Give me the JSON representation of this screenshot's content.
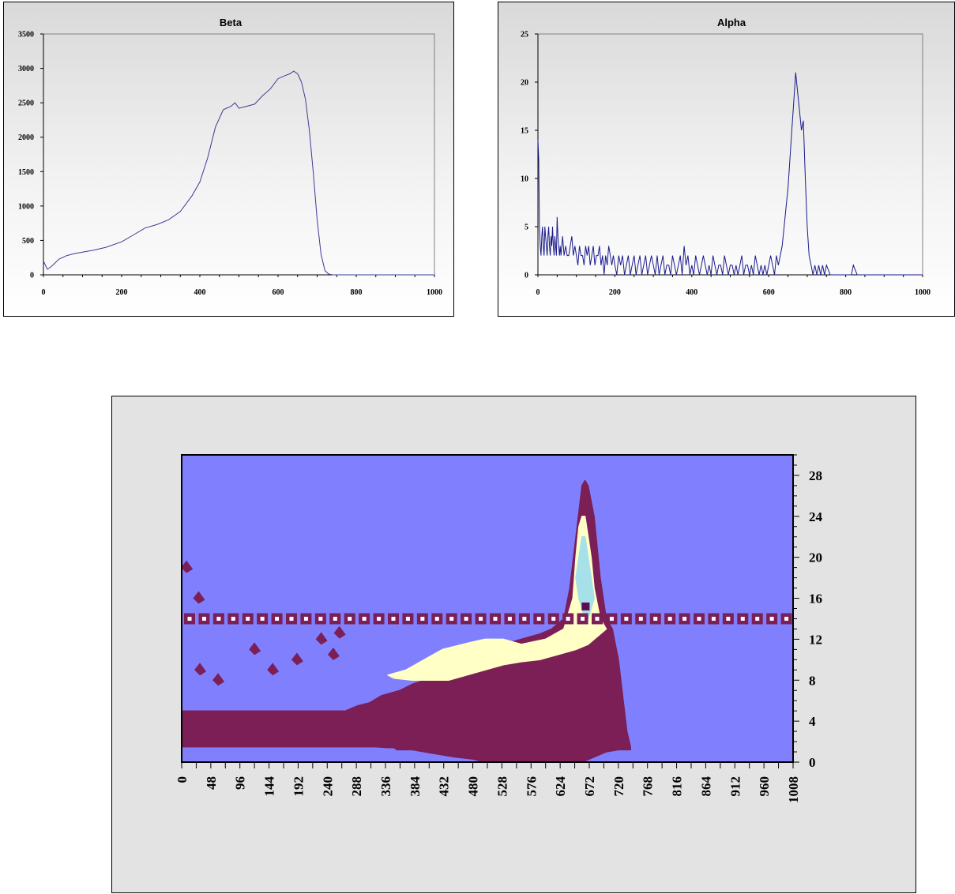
{
  "chart_data": [
    {
      "type": "line",
      "title": "Beta",
      "xlim": [
        0,
        1000
      ],
      "ylim": [
        0,
        3500
      ],
      "x_ticks": [
        "0",
        "200",
        "400",
        "600",
        "800",
        "1000"
      ],
      "y_ticks": [
        "0",
        "500",
        "1000",
        "1500",
        "2000",
        "2500",
        "3000",
        "3500"
      ],
      "grid": false,
      "legend": "none",
      "colors": {
        "line": "#3c3c96"
      },
      "series": [
        {
          "x": [
            0,
            10,
            20,
            40,
            60,
            80,
            100,
            130,
            160,
            200,
            230,
            260,
            290,
            320,
            350,
            380,
            400,
            420,
            440,
            460,
            480,
            490,
            500,
            520,
            540,
            560,
            580,
            600,
            620,
            630,
            640,
            650,
            660,
            670,
            680,
            690,
            700,
            710,
            720,
            730,
            740,
            760,
            800,
            900,
            1000
          ],
          "y": [
            200,
            80,
            120,
            230,
            280,
            310,
            330,
            360,
            400,
            480,
            580,
            680,
            730,
            800,
            920,
            1150,
            1350,
            1700,
            2150,
            2400,
            2450,
            2500,
            2420,
            2450,
            2480,
            2600,
            2700,
            2850,
            2900,
            2920,
            2960,
            2920,
            2800,
            2550,
            2100,
            1500,
            800,
            300,
            60,
            10,
            0,
            0,
            0,
            0,
            0
          ]
        }
      ]
    },
    {
      "type": "line",
      "title": "Alpha",
      "xlim": [
        0,
        1000
      ],
      "ylim": [
        0,
        25
      ],
      "x_ticks": [
        "0",
        "200",
        "400",
        "600",
        "800",
        "1000"
      ],
      "y_ticks": [
        "0",
        "5",
        "10",
        "15",
        "20",
        "25"
      ],
      "grid": false,
      "legend": "none",
      "colors": {
        "line": "#1a1a8c"
      },
      "series": [
        {
          "x": [
            0,
            2,
            4,
            6,
            8,
            10,
            12,
            14,
            16,
            18,
            20,
            22,
            24,
            26,
            28,
            30,
            32,
            34,
            36,
            38,
            40,
            42,
            44,
            46,
            48,
            50,
            52,
            54,
            56,
            58,
            60,
            64,
            68,
            72,
            76,
            80,
            84,
            88,
            92,
            96,
            100,
            104,
            108,
            112,
            116,
            120,
            124,
            128,
            132,
            136,
            140,
            144,
            148,
            152,
            156,
            160,
            164,
            168,
            172,
            176,
            180,
            184,
            188,
            192,
            196,
            200,
            205,
            210,
            215,
            220,
            225,
            230,
            235,
            240,
            245,
            250,
            255,
            260,
            265,
            270,
            275,
            280,
            285,
            290,
            295,
            300,
            305,
            310,
            315,
            320,
            325,
            330,
            335,
            340,
            345,
            350,
            355,
            360,
            365,
            370,
            375,
            380,
            385,
            390,
            395,
            400,
            405,
            410,
            415,
            420,
            425,
            430,
            435,
            440,
            445,
            450,
            455,
            460,
            465,
            470,
            475,
            480,
            485,
            490,
            495,
            500,
            505,
            510,
            515,
            520,
            525,
            530,
            535,
            540,
            545,
            550,
            555,
            560,
            565,
            570,
            575,
            580,
            585,
            590,
            595,
            600,
            605,
            610,
            615,
            620,
            625,
            630,
            635,
            640,
            645,
            650,
            655,
            660,
            665,
            670,
            675,
            680,
            685,
            690,
            695,
            700,
            705,
            710,
            715,
            720,
            725,
            730,
            735,
            740,
            745,
            750,
            760,
            780,
            800,
            810,
            815,
            820,
            830,
            850,
            900,
            950,
            1000
          ],
          "y": [
            14,
            12,
            5,
            3,
            2,
            4,
            5,
            3,
            2,
            5,
            4,
            3,
            2,
            4,
            5,
            3,
            2,
            4,
            3,
            5,
            3,
            2,
            4,
            3,
            2,
            6,
            4,
            3,
            2,
            3,
            2,
            4,
            2,
            3,
            2,
            2,
            3,
            4,
            2,
            3,
            2,
            1,
            3,
            2,
            2,
            1,
            3,
            2,
            3,
            1,
            2,
            3,
            1,
            2,
            2,
            3,
            1,
            2,
            0,
            2,
            1,
            3,
            2,
            1,
            2,
            1,
            0,
            2,
            1,
            2,
            0,
            1,
            2,
            0,
            1,
            2,
            0,
            1,
            2,
            0,
            1,
            2,
            0,
            1,
            2,
            1,
            0,
            2,
            0,
            1,
            2,
            0,
            1,
            1,
            0,
            2,
            1,
            0,
            1,
            2,
            0,
            3,
            1,
            2,
            0,
            1,
            0,
            2,
            1,
            0,
            1,
            2,
            1,
            0,
            1,
            0,
            2,
            1,
            0,
            1,
            1,
            0,
            2,
            1,
            0,
            1,
            1,
            0,
            1,
            0,
            1,
            2,
            0,
            1,
            1,
            0,
            1,
            0,
            2,
            1,
            0,
            1,
            0,
            1,
            0,
            1,
            2,
            1,
            0,
            2,
            1,
            2,
            3,
            5,
            7,
            9,
            12,
            15,
            18,
            21,
            19,
            17,
            15,
            16,
            10,
            5,
            2,
            1,
            0,
            1,
            0,
            1,
            0,
            1,
            0,
            1,
            0,
            0,
            0,
            0,
            0,
            1,
            0,
            0,
            0,
            0,
            0
          ]
        }
      ]
    },
    {
      "type": "heatmap",
      "title": "",
      "xlim": [
        0,
        1008
      ],
      "ylim": [
        0,
        30
      ],
      "x_ticks": [
        "0",
        "48",
        "96",
        "144",
        "192",
        "240",
        "288",
        "336",
        "384",
        "432",
        "480",
        "528",
        "576",
        "624",
        "672",
        "720",
        "768",
        "816",
        "864",
        "912",
        "960",
        "1008"
      ],
      "y_ticks": [
        "0",
        "4",
        "8",
        "12",
        "16",
        "20",
        "24",
        "28"
      ],
      "legend": "none",
      "colors": {
        "background": "#8080ff",
        "level1": "#7b1f56",
        "level2": "#ffffc6",
        "level3": "#a6e0e8",
        "level4": "#5c0b55",
        "band_marker_inner": "#ffffff"
      },
      "band_y": 14,
      "band_x": [
        0,
        24,
        48,
        72,
        96,
        120,
        144,
        168,
        192,
        216,
        240,
        264,
        288,
        312,
        336,
        360,
        384,
        408,
        432,
        456,
        480,
        504,
        528,
        552,
        576,
        600,
        624,
        648,
        672,
        696,
        720,
        744,
        768,
        792,
        816,
        840,
        864,
        888,
        912,
        936,
        960,
        984
      ],
      "outer_contour": {
        "x": [
          0,
          20,
          60,
          100,
          150,
          200,
          240,
          270,
          290,
          310,
          330,
          360,
          380,
          400,
          420,
          440,
          470,
          500,
          530,
          560,
          590,
          610,
          630,
          640,
          650,
          660,
          665,
          670,
          680,
          690,
          700,
          710,
          720,
          728,
          734,
          740,
          740,
          720,
          700,
          680,
          660,
          640,
          600,
          560,
          520,
          500,
          480,
          450,
          420,
          400,
          380,
          355,
          350,
          340,
          320,
          300,
          260,
          220,
          180,
          140,
          100,
          60,
          20,
          0
        ],
        "y": [
          5,
          5,
          5,
          5,
          5,
          5,
          5,
          5,
          5.5,
          5.8,
          6.5,
          7,
          7.6,
          8,
          8.8,
          9.6,
          10.5,
          11,
          11.5,
          12,
          12.5,
          13,
          14,
          17,
          22,
          27,
          27.5,
          27,
          24,
          18,
          14,
          13,
          10,
          6,
          3,
          1.5,
          1.2,
          1.2,
          1.0,
          0.5,
          0,
          0,
          0,
          0,
          0,
          0,
          0.3,
          0.5,
          0.8,
          1.0,
          1.2,
          1.2,
          1.4,
          1.4,
          1.5,
          1.5,
          1.5,
          1.5,
          1.5,
          1.5,
          1.5,
          1.5,
          1.5,
          1.5
        ]
      },
      "level2_contour": {
        "x": [
          340,
          370,
          400,
          430,
          470,
          500,
          530,
          560,
          600,
          630,
          645,
          650,
          655,
          660,
          665,
          670,
          675,
          680,
          690,
          700,
          690,
          680,
          670,
          650,
          620,
          590,
          560,
          530,
          500,
          470,
          440,
          410,
          380,
          350
        ],
        "y": [
          8.5,
          9,
          10,
          11,
          11.6,
          12,
          12,
          11.5,
          12,
          13,
          16,
          20,
          23,
          24,
          24,
          22,
          20,
          17,
          14,
          13,
          12.5,
          12,
          11.5,
          11,
          10.5,
          10,
          9.8,
          9.5,
          9,
          8.5,
          8,
          8,
          8,
          8.2
        ]
      },
      "level3_contour": {
        "x": [
          650,
          655,
          660,
          665,
          670,
          675,
          680,
          675,
          670,
          665,
          660,
          655
        ],
        "y": [
          18,
          20,
          22,
          22,
          20,
          18,
          16,
          15,
          14,
          14,
          15,
          16
        ]
      },
      "level4_spot": {
        "x": 666,
        "y": 15.2
      }
    }
  ]
}
